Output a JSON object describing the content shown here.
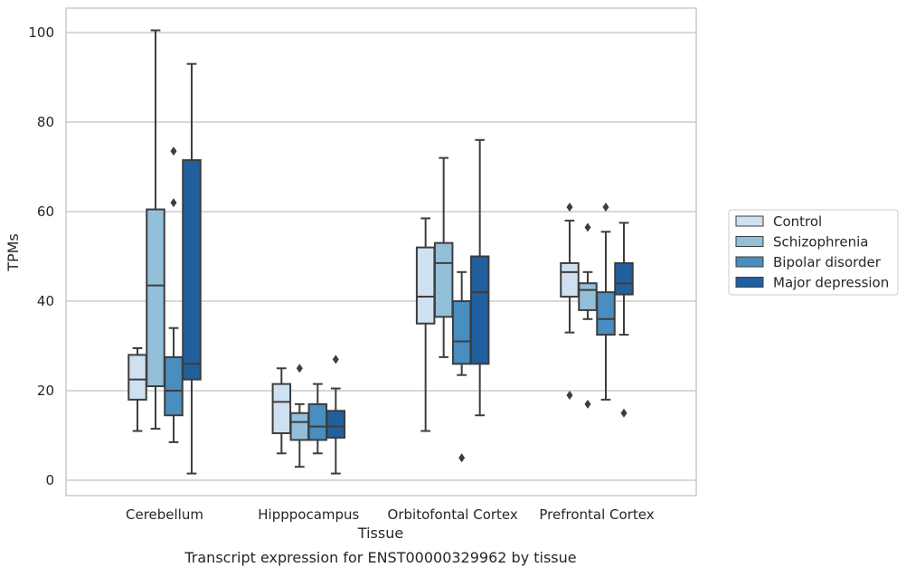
{
  "chart_data": {
    "type": "boxplot",
    "title": "",
    "caption": "Transcript expression for ENST00000329962 by tissue",
    "xlabel": "Tissue",
    "ylabel": "TPMs",
    "ylim": [
      -3,
      105
    ],
    "yticks": [
      0,
      20,
      40,
      60,
      80,
      100
    ],
    "grid": "horizontal",
    "legend_position": "right",
    "categories": [
      "Cerebellum",
      "Hipppocampus",
      "Orbitofontal Cortex",
      "Prefrontal Cortex"
    ],
    "series": [
      {
        "name": "Control",
        "color": "#cfe0f1",
        "boxes": [
          {
            "whislo": 11,
            "q1": 18,
            "med": 22.5,
            "q3": 28,
            "whishi": 29.5,
            "fliers": []
          },
          {
            "whislo": 6,
            "q1": 10.5,
            "med": 17.5,
            "q3": 21.5,
            "whishi": 25,
            "fliers": []
          },
          {
            "whislo": 11,
            "q1": 35,
            "med": 41,
            "q3": 52,
            "whishi": 58.5,
            "fliers": []
          },
          {
            "whislo": 33,
            "q1": 41,
            "med": 46.5,
            "q3": 48.5,
            "whishi": 58,
            "fliers": [
              61,
              19
            ]
          }
        ]
      },
      {
        "name": "Schizophrenia",
        "color": "#93bfd9",
        "boxes": [
          {
            "whislo": 11.5,
            "q1": 21,
            "med": 43.5,
            "q3": 60.5,
            "whishi": 100.5,
            "fliers": []
          },
          {
            "whislo": 3,
            "q1": 9,
            "med": 13,
            "q3": 15,
            "whishi": 17,
            "fliers": [
              25
            ]
          },
          {
            "whislo": 27.5,
            "q1": 36.5,
            "med": 48.5,
            "q3": 53,
            "whishi": 72,
            "fliers": []
          },
          {
            "whislo": 36,
            "q1": 38,
            "med": 42.5,
            "q3": 44,
            "whishi": 46.5,
            "fliers": [
              56.5,
              17
            ]
          }
        ]
      },
      {
        "name": "Bipolar disorder",
        "color": "#4a8dbf",
        "boxes": [
          {
            "whislo": 8.5,
            "q1": 14.5,
            "med": 20,
            "q3": 27.5,
            "whishi": 34,
            "fliers": [
              73.5,
              62
            ]
          },
          {
            "whislo": 6,
            "q1": 9,
            "med": 12,
            "q3": 17,
            "whishi": 21.5,
            "fliers": []
          },
          {
            "whislo": 23.5,
            "q1": 26,
            "med": 31,
            "q3": 40,
            "whishi": 46.5,
            "fliers": [
              5
            ]
          },
          {
            "whislo": 18,
            "q1": 32.5,
            "med": 36,
            "q3": 42,
            "whishi": 55.5,
            "fliers": [
              61
            ]
          }
        ]
      },
      {
        "name": "Major depression",
        "color": "#21609e",
        "boxes": [
          {
            "whislo": 1.5,
            "q1": 22.5,
            "med": 26,
            "q3": 71.5,
            "whishi": 93,
            "fliers": []
          },
          {
            "whislo": 1.5,
            "q1": 9.5,
            "med": 12,
            "q3": 15.5,
            "whishi": 20.5,
            "fliers": [
              27
            ]
          },
          {
            "whislo": 14.5,
            "q1": 26,
            "med": 42,
            "q3": 50,
            "whishi": 76,
            "fliers": []
          },
          {
            "whislo": 32.5,
            "q1": 41.5,
            "med": 44,
            "q3": 48.5,
            "whishi": 57.5,
            "fliers": [
              15
            ]
          }
        ]
      }
    ]
  }
}
